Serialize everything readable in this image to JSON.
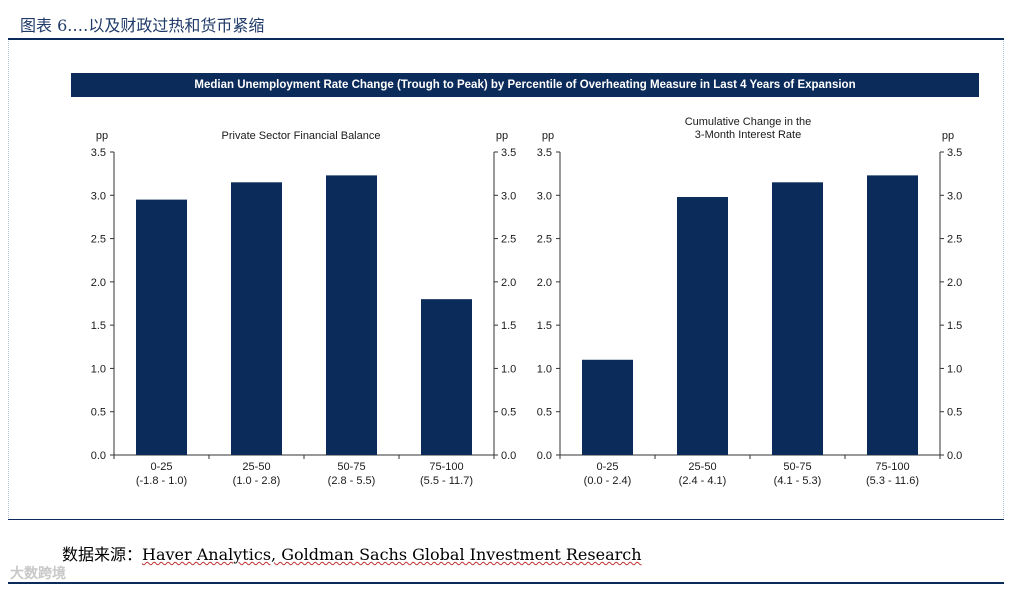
{
  "figure_title": "图表 6.…以及财政过热和货币紧缩",
  "banner": "Median Unemployment Rate Change (Trough to Peak) by Percentile of Overheating Measure in Last 4 Years of Expansion",
  "source_label": "数据来源：",
  "source_text": "Haver Analytics, Goldman Sachs Global Investment Research",
  "watermark": "大数跨境",
  "colors": {
    "bar": "#0b2c5a",
    "axis": "#333333",
    "text": "#1a1a1a"
  },
  "chart_data": [
    {
      "type": "bar",
      "title": "Private Sector Financial Balance",
      "unit_left": "pp",
      "unit_right": "pp",
      "categories": [
        "0-25",
        "25-50",
        "50-75",
        "75-100"
      ],
      "category_ranges": [
        "(-1.8 - 1.0)",
        "(1.0 - 2.8)",
        "(2.8 - 5.5)",
        "(5.5 - 11.7)"
      ],
      "values": [
        2.95,
        3.15,
        3.23,
        1.8
      ],
      "ylim": [
        0,
        3.5
      ],
      "yticks": [
        "3.5",
        "3.0",
        "2.5",
        "2.0",
        "1.5",
        "1.0",
        "0.5",
        "0.0"
      ]
    },
    {
      "type": "bar",
      "title": "Cumulative Change in the 3-Month Interest Rate",
      "title_lines": [
        "Cumulative Change in the",
        "3-Month Interest Rate"
      ],
      "unit_left": "pp",
      "unit_right": "pp",
      "categories": [
        "0-25",
        "25-50",
        "50-75",
        "75-100"
      ],
      "category_ranges": [
        "(0.0 - 2.4)",
        "(2.4 - 4.1)",
        "(4.1 - 5.3)",
        "(5.3 - 11.6)"
      ],
      "values": [
        1.1,
        2.98,
        3.15,
        3.23
      ],
      "ylim": [
        0,
        3.5
      ],
      "yticks": [
        "3.5",
        "3.0",
        "2.5",
        "2.0",
        "1.5",
        "1.0",
        "0.5",
        "0.0"
      ]
    }
  ]
}
